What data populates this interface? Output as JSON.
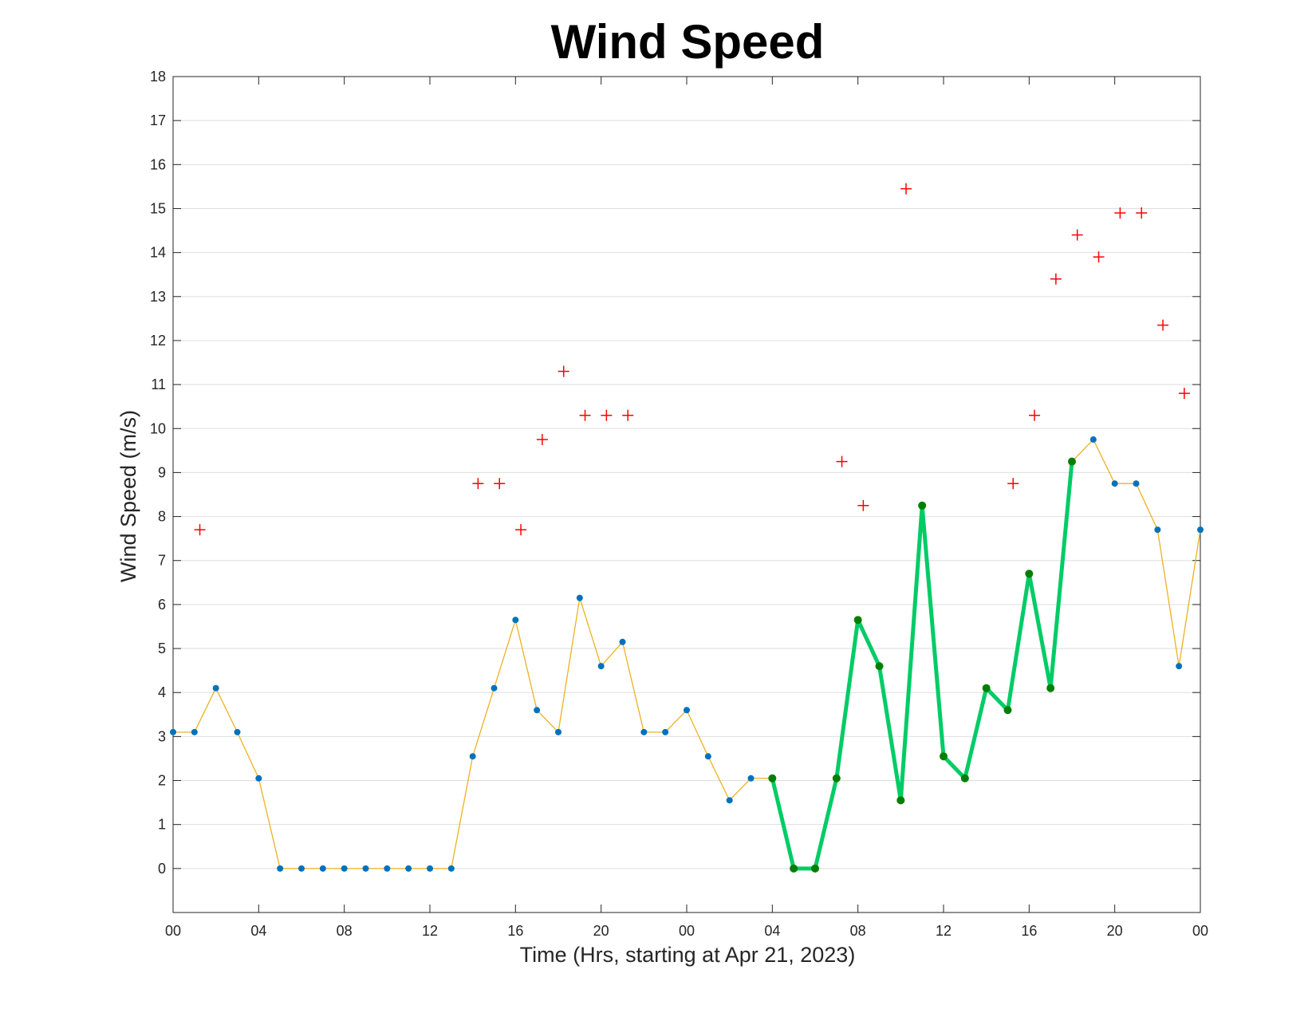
{
  "chart_data": {
    "type": "line",
    "title": "Wind Speed",
    "xlabel": "Time (Hrs, starting at Apr 21, 2023)",
    "ylabel": "Wind Speed (m/s)",
    "ylim": [
      -1,
      18
    ],
    "xlim": [
      0,
      48
    ],
    "grid": "horizontal",
    "x_tick_values": [
      0,
      4,
      8,
      12,
      16,
      20,
      24,
      28,
      32,
      36,
      40,
      44,
      48
    ],
    "x_tick_labels": [
      "00",
      "04",
      "08",
      "12",
      "16",
      "20",
      "00",
      "04",
      "08",
      "12",
      "16",
      "20",
      "00"
    ],
    "y_ticks": [
      0,
      1,
      2,
      3,
      4,
      5,
      6,
      7,
      8,
      9,
      10,
      11,
      12,
      13,
      14,
      15,
      16,
      17,
      18
    ],
    "colors": {
      "series_line": "#EDB120",
      "series_marker": "#0072BD",
      "highlight_line": "#00CC66",
      "highlight_marker": "#007F00",
      "gust_marker": "#FF0000"
    },
    "series": [
      {
        "style": "line-with-dots",
        "x": [
          0,
          1,
          2,
          3,
          4,
          5,
          6,
          7,
          8,
          9,
          10,
          11,
          12,
          13,
          14,
          15,
          16,
          17,
          18,
          19,
          20,
          21,
          22,
          23,
          24,
          25,
          26,
          27,
          28,
          29,
          30,
          31,
          32,
          33,
          34,
          35,
          36,
          37,
          38,
          39,
          40,
          41,
          42,
          43,
          44,
          45,
          46,
          47,
          48
        ],
        "y": [
          3.1,
          3.1,
          4.1,
          3.1,
          2.05,
          0,
          0,
          0,
          0,
          0,
          0,
          0,
          0,
          0,
          2.55,
          4.1,
          5.65,
          3.6,
          3.1,
          6.15,
          4.6,
          5.15,
          3.1,
          3.1,
          3.6,
          2.55,
          1.55,
          2.05,
          2.05,
          0,
          0,
          2.05,
          5.65,
          4.6,
          1.55,
          8.25,
          2.55,
          2.05,
          4.1,
          3.6,
          6.7,
          4.1,
          9.25,
          9.75,
          8.75,
          8.75,
          7.7,
          4.6,
          7.7
        ]
      },
      {
        "style": "highlight-thick-line",
        "x": [
          28,
          29,
          30,
          31,
          32,
          33,
          34,
          35,
          36,
          37,
          38,
          39,
          40,
          41,
          42
        ],
        "y": [
          2.05,
          0,
          0,
          2.05,
          5.65,
          4.6,
          1.55,
          8.25,
          2.55,
          2.05,
          4.1,
          3.6,
          6.7,
          4.1,
          9.25
        ]
      },
      {
        "style": "plus-markers",
        "x": [
          1.25,
          14.25,
          15.25,
          16.25,
          17.25,
          18.25,
          19.25,
          20.25,
          21.25,
          31.25,
          32.25,
          34.25,
          39.25,
          40.25,
          41.25,
          42.25,
          43.25,
          44.25,
          45.25,
          46.25,
          47.25
        ],
        "y": [
          7.7,
          8.75,
          8.75,
          7.7,
          9.75,
          11.3,
          10.3,
          10.3,
          10.3,
          9.25,
          8.25,
          15.45,
          8.75,
          10.3,
          13.4,
          14.4,
          13.9,
          14.9,
          14.9,
          12.35,
          10.8
        ]
      }
    ]
  }
}
